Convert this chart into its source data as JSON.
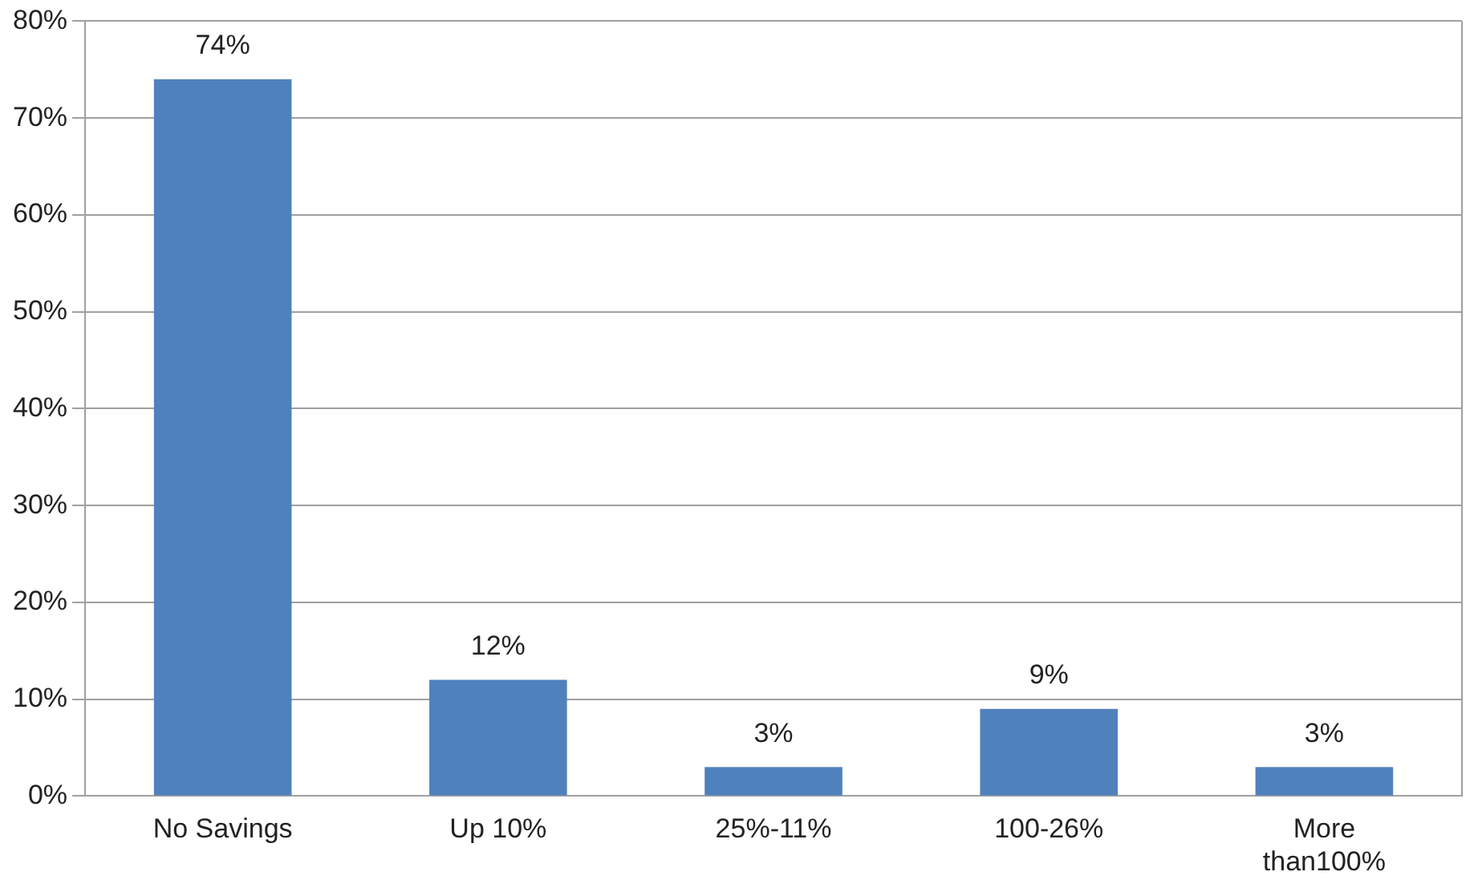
{
  "chart_data": {
    "type": "bar",
    "categories": [
      "No Savings",
      "Up 10%",
      "25%-11%",
      "100-26%",
      "More than100%"
    ],
    "values": [
      74,
      12,
      3,
      9,
      3
    ],
    "value_labels": [
      "74%",
      "12%",
      "3%",
      "9%",
      "3%"
    ],
    "color": "#4f81bd",
    "ylim": [
      0,
      80
    ],
    "yticks": [
      {
        "value": 0,
        "label": "0%"
      },
      {
        "value": 10,
        "label": "10%"
      },
      {
        "value": 20,
        "label": "20%"
      },
      {
        "value": 30,
        "label": "30%"
      },
      {
        "value": 40,
        "label": "40%"
      },
      {
        "value": 50,
        "label": "50%"
      },
      {
        "value": 60,
        "label": "60%"
      },
      {
        "value": 70,
        "label": "70%"
      },
      {
        "value": 80,
        "label": "80%"
      }
    ],
    "grid": "y"
  }
}
